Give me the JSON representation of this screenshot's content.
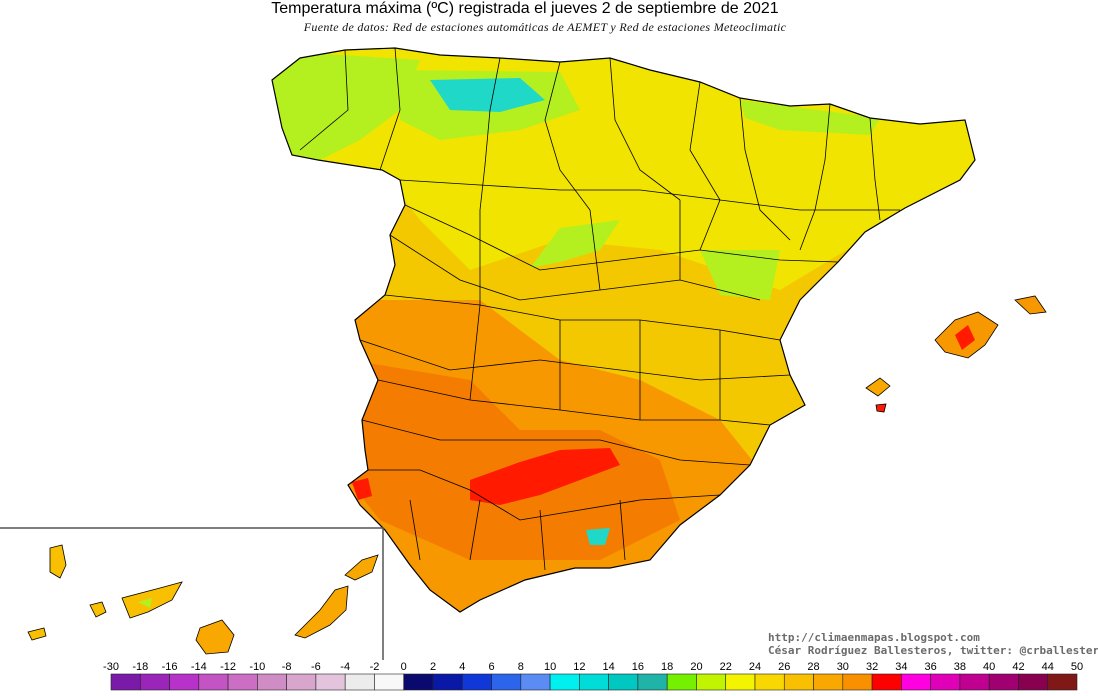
{
  "title": "Temperatura máxima (ºC) registrada el jueves 2 de septiembre de 2021",
  "subtitle": "Fuente de datos: Red de estaciones automáticas de AEMET y Red de estaciones Meteoclimatic",
  "credits": {
    "url": "http://climaenmapas.blogspot.com",
    "author": "César Rodríguez Ballesteros, twitter: @crballesteros"
  },
  "legend": {
    "labels": [
      "-30",
      "-18",
      "-16",
      "-14",
      "-12",
      "-10",
      "-8",
      "-6",
      "-4",
      "-2",
      "0",
      "2",
      "4",
      "6",
      "8",
      "10",
      "12",
      "14",
      "16",
      "18",
      "20",
      "22",
      "24",
      "26",
      "28",
      "30",
      "32",
      "34",
      "36",
      "38",
      "40",
      "42",
      "44",
      "50"
    ],
    "colors": [
      "#7a1aa8",
      "#9b25b8",
      "#b632c8",
      "#c454c4",
      "#cc6fc4",
      "#d08cc4",
      "#d8a6cc",
      "#e4c4dc",
      "#ececec",
      "#f8f8f8",
      "#0a0a6e",
      "#0a18a8",
      "#1038d8",
      "#2c64ec",
      "#5a8cf4",
      "#00f0f0",
      "#00dcd8",
      "#00c8c0",
      "#20b4a8",
      "#74f000",
      "#c0f400",
      "#f4f400",
      "#f8d800",
      "#f8c000",
      "#f8a800",
      "#f89000",
      "#ff0000",
      "#ff00e0",
      "#e000b8",
      "#c00090",
      "#a00070",
      "#880050",
      "#801818"
    ]
  },
  "map_colors": {
    "coast_cool": "#b4f020",
    "north": "#f0e400",
    "center": "#f4c800",
    "south": "#f89800",
    "hot": "#f47c00",
    "extreme": "#ff1a00",
    "mountain": "#20d8c8",
    "border": "#000000"
  }
}
